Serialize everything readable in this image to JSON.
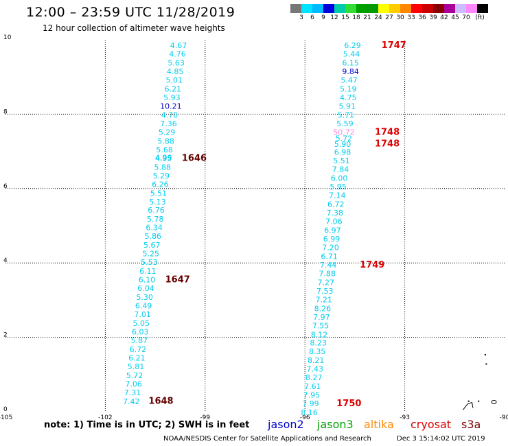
{
  "title": "12:00 – 23:59 UTC 11/28/2019",
  "subtitle": "12 hour collection of altimeter wave heights",
  "colorbar": {
    "colors": [
      "#777777",
      "#00e5ff",
      "#00bbff",
      "#0000dd",
      "#00ccaa",
      "#33dd33",
      "#00a000",
      "#009900",
      "#ffff00",
      "#ffcc00",
      "#ff8800",
      "#ff0000",
      "#cc0000",
      "#880000",
      "#aa0099",
      "#ccbbff",
      "#ff88ff",
      "#000000"
    ],
    "labels": [
      "3",
      "6",
      "9",
      "12",
      "15",
      "18",
      "21",
      "24",
      "27",
      "30",
      "33",
      "36",
      "39",
      "42",
      "45",
      "70",
      "(ft)"
    ]
  },
  "chart_data": {
    "type": "map",
    "xlim": [
      -105,
      -90
    ],
    "ylim": [
      0,
      10
    ],
    "x_ticks": [
      "-105",
      "-102",
      "-99",
      "-96",
      "-93",
      "-90"
    ],
    "y_ticks": [
      "0",
      "2",
      "4",
      "6",
      "8",
      "10"
    ],
    "grid": true,
    "tracks": [
      {
        "color": "#00ccee",
        "points": [
          {
            "lon": -99.8,
            "lat": 9.85,
            "v": "4.67"
          },
          {
            "lon": -99.83,
            "lat": 9.62,
            "v": "4.76"
          },
          {
            "lon": -99.87,
            "lat": 9.38,
            "v": "5.63"
          },
          {
            "lon": -99.9,
            "lat": 9.15,
            "v": "4.85"
          },
          {
            "lon": -99.93,
            "lat": 8.92,
            "v": "5.01"
          },
          {
            "lon": -99.97,
            "lat": 8.68,
            "v": "6.21"
          },
          {
            "lon": -100.0,
            "lat": 8.45,
            "v": "5.93"
          },
          {
            "lon": -100.03,
            "lat": 8.22,
            "v": "10.21",
            "c": "#0000cc"
          },
          {
            "lon": -100.07,
            "lat": 7.98,
            "v": "4.70"
          },
          {
            "lon": -100.1,
            "lat": 7.75,
            "v": "7.36"
          },
          {
            "lon": -100.15,
            "lat": 7.52,
            "v": "5.29"
          },
          {
            "lon": -100.18,
            "lat": 7.28,
            "v": "5.88"
          },
          {
            "lon": -100.22,
            "lat": 7.05,
            "v": "5.68"
          },
          {
            "lon": -100.25,
            "lat": 6.82,
            "v": "4.95"
          },
          {
            "lon": -100.28,
            "lat": 6.58,
            "v": "5.88"
          },
          {
            "lon": -100.32,
            "lat": 6.35,
            "v": "5.29"
          },
          {
            "lon": -100.35,
            "lat": 6.12,
            "v": "6.26"
          },
          {
            "lon": -100.4,
            "lat": 5.88,
            "v": "5.51"
          },
          {
            "lon": -100.43,
            "lat": 5.65,
            "v": "5.13"
          },
          {
            "lon": -100.47,
            "lat": 5.42,
            "v": "6.76"
          },
          {
            "lon": -100.5,
            "lat": 5.18,
            "v": "5.78"
          },
          {
            "lon": -100.53,
            "lat": 4.95,
            "v": "6.34"
          },
          {
            "lon": -100.57,
            "lat": 4.72,
            "v": "5.86"
          },
          {
            "lon": -100.6,
            "lat": 4.48,
            "v": "5.67"
          },
          {
            "lon": -100.63,
            "lat": 4.25,
            "v": "5.25"
          },
          {
            "lon": -100.68,
            "lat": 4.02,
            "v": "5.53"
          },
          {
            "lon": -100.72,
            "lat": 3.78,
            "v": "6.11"
          },
          {
            "lon": -100.75,
            "lat": 3.55,
            "v": "6.10"
          },
          {
            "lon": -100.78,
            "lat": 3.32,
            "v": "6.04"
          },
          {
            "lon": -100.82,
            "lat": 3.08,
            "v": "5.30"
          },
          {
            "lon": -100.85,
            "lat": 2.85,
            "v": "6.49"
          },
          {
            "lon": -100.88,
            "lat": 2.62,
            "v": "7.01"
          },
          {
            "lon": -100.92,
            "lat": 2.38,
            "v": "5.05"
          },
          {
            "lon": -100.95,
            "lat": 2.15,
            "v": "6.03"
          },
          {
            "lon": -100.98,
            "lat": 1.92,
            "v": "5.87"
          },
          {
            "lon": -101.02,
            "lat": 1.68,
            "v": "6.72"
          },
          {
            "lon": -101.05,
            "lat": 1.45,
            "v": "6.21"
          },
          {
            "lon": -101.08,
            "lat": 1.22,
            "v": "5.81"
          },
          {
            "lon": -101.12,
            "lat": 0.98,
            "v": "5.72"
          },
          {
            "lon": -101.15,
            "lat": 0.75,
            "v": "7.06"
          },
          {
            "lon": -101.18,
            "lat": 0.52,
            "v": "7.31"
          },
          {
            "lon": -101.22,
            "lat": 0.28,
            "v": "7.42"
          }
        ],
        "overlap": [
          {
            "lon": -100.25,
            "lat": 6.84,
            "v": "4.99"
          }
        ],
        "times": [
          {
            "lon": -99.7,
            "lat": 6.84,
            "t": "1646"
          },
          {
            "lon": -100.2,
            "lat": 3.57,
            "t": "1647"
          },
          {
            "lon": -100.7,
            "lat": 0.3,
            "t": "1648"
          }
        ],
        "time_color": "#660000"
      },
      {
        "color": "#00ccee",
        "points": [
          {
            "lon": -94.57,
            "lat": 9.85,
            "v": "6.29"
          },
          {
            "lon": -94.6,
            "lat": 9.62,
            "v": "5.44"
          },
          {
            "lon": -94.63,
            "lat": 9.38,
            "v": "6.15"
          },
          {
            "lon": -94.63,
            "lat": 9.15,
            "v": "9.84",
            "c": "#0000cc"
          },
          {
            "lon": -94.67,
            "lat": 8.92,
            "v": "5.47"
          },
          {
            "lon": -94.7,
            "lat": 8.68,
            "v": "5.19"
          },
          {
            "lon": -94.7,
            "lat": 8.45,
            "v": "4.75"
          },
          {
            "lon": -94.73,
            "lat": 8.22,
            "v": "5.91"
          },
          {
            "lon": -94.77,
            "lat": 7.98,
            "v": "5.71"
          },
          {
            "lon": -94.8,
            "lat": 7.75,
            "v": "5.59"
          },
          {
            "lon": -94.83,
            "lat": 7.52,
            "v": "50.72",
            "c": "#ff88dd"
          },
          {
            "lon": -94.83,
            "lat": 7.35,
            "v": "5.72"
          },
          {
            "lon": -94.87,
            "lat": 7.2,
            "v": "5.90"
          },
          {
            "lon": -94.87,
            "lat": 6.98,
            "v": "6.98"
          },
          {
            "lon": -94.9,
            "lat": 6.75,
            "v": "5.51"
          },
          {
            "lon": -94.93,
            "lat": 6.52,
            "v": "7.84"
          },
          {
            "lon": -94.97,
            "lat": 6.28,
            "v": "6.00"
          },
          {
            "lon": -95.0,
            "lat": 6.05,
            "v": "5.95"
          },
          {
            "lon": -95.03,
            "lat": 5.82,
            "v": "7.14"
          },
          {
            "lon": -95.07,
            "lat": 5.58,
            "v": "6.72"
          },
          {
            "lon": -95.1,
            "lat": 5.35,
            "v": "7.38"
          },
          {
            "lon": -95.13,
            "lat": 5.12,
            "v": "7.06"
          },
          {
            "lon": -95.17,
            "lat": 4.88,
            "v": "6.97"
          },
          {
            "lon": -95.2,
            "lat": 4.65,
            "v": "6.99"
          },
          {
            "lon": -95.23,
            "lat": 4.42,
            "v": "7.20"
          },
          {
            "lon": -95.27,
            "lat": 4.18,
            "v": "6.71"
          },
          {
            "lon": -95.3,
            "lat": 3.95,
            "v": "7.44"
          },
          {
            "lon": -95.33,
            "lat": 3.72,
            "v": "7.88"
          },
          {
            "lon": -95.37,
            "lat": 3.48,
            "v": "7.27"
          },
          {
            "lon": -95.4,
            "lat": 3.25,
            "v": "7.53"
          },
          {
            "lon": -95.43,
            "lat": 3.02,
            "v": "7.21"
          },
          {
            "lon": -95.47,
            "lat": 2.78,
            "v": "8.26"
          },
          {
            "lon": -95.5,
            "lat": 2.55,
            "v": "7.97"
          },
          {
            "lon": -95.53,
            "lat": 2.32,
            "v": "7.55"
          },
          {
            "lon": -95.57,
            "lat": 2.08,
            "v": "8.12"
          },
          {
            "lon": -95.6,
            "lat": 1.85,
            "v": "8.23"
          },
          {
            "lon": -95.63,
            "lat": 1.62,
            "v": "8.35"
          },
          {
            "lon": -95.67,
            "lat": 1.38,
            "v": "8.21"
          },
          {
            "lon": -95.7,
            "lat": 1.15,
            "v": "7.43"
          },
          {
            "lon": -95.73,
            "lat": 0.92,
            "v": "8.27"
          },
          {
            "lon": -95.77,
            "lat": 0.68,
            "v": "7.61"
          },
          {
            "lon": -95.8,
            "lat": 0.45,
            "v": "7.95"
          },
          {
            "lon": -95.83,
            "lat": 0.22,
            "v": "7.99"
          },
          {
            "lon": -95.87,
            "lat": -0.02,
            "v": "8.16"
          }
        ],
        "overlap": [],
        "times": [
          {
            "lon": -93.7,
            "lat": 9.87,
            "t": "1747"
          },
          {
            "lon": -93.9,
            "lat": 7.54,
            "t": "1748"
          },
          {
            "lon": -93.9,
            "lat": 7.22,
            "t": "1748"
          },
          {
            "lon": -94.35,
            "lat": 3.97,
            "t": "1749"
          },
          {
            "lon": -95.05,
            "lat": 0.24,
            "t": "1750"
          }
        ],
        "time_color": "#dd0000"
      }
    ],
    "land": [
      {
        "lon": -90.6,
        "lat": 1.55
      },
      {
        "lon": -90.57,
        "lat": 1.3
      },
      {
        "lon": -91.1,
        "lat": 0.3
      },
      {
        "lon": -90.8,
        "lat": 0.3
      },
      {
        "lon": -90.32,
        "lat": 0.26
      }
    ]
  },
  "note": "note:  1) Time is in UTC; 2) SWH is in feet",
  "legend": [
    {
      "label": "jason2",
      "color": "#0000cc"
    },
    {
      "label": "jason3",
      "color": "#00a000"
    },
    {
      "label": "altika",
      "color": "#ff8800"
    },
    {
      "label": "cryosat",
      "color": "#dd0000"
    },
    {
      "label": "s3a",
      "color": "#770000"
    }
  ],
  "credit": "NOAA/NESDIS Center for Satellite Applications and Research",
  "timestamp": "Dec  3 15:14:02 UTC 2019"
}
